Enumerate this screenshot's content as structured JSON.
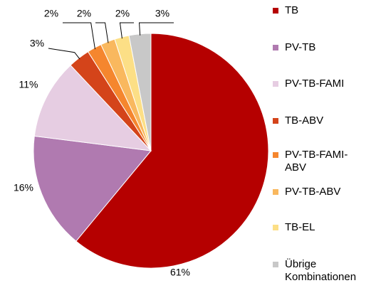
{
  "chart_data": {
    "type": "pie",
    "categories": [
      "TB",
      "PV-TB",
      "PV-TB-FAMI",
      "TB-ABV",
      "PV-TB-FAMI-ABV",
      "PV-TB-ABV",
      "TB-EL",
      "Übrige Kombinationen"
    ],
    "values": [
      61,
      16,
      11,
      3,
      2,
      2,
      2,
      3
    ],
    "value_labels": [
      "61%",
      "16%",
      "11%",
      "3%",
      "2%",
      "2%",
      "2%",
      "3%"
    ],
    "colors": [
      "#b50000",
      "#b07ab0",
      "#e6cde2",
      "#d4441a",
      "#f5862e",
      "#f9b85e",
      "#fcdf86",
      "#c8c8c8"
    ],
    "legend": "right"
  }
}
